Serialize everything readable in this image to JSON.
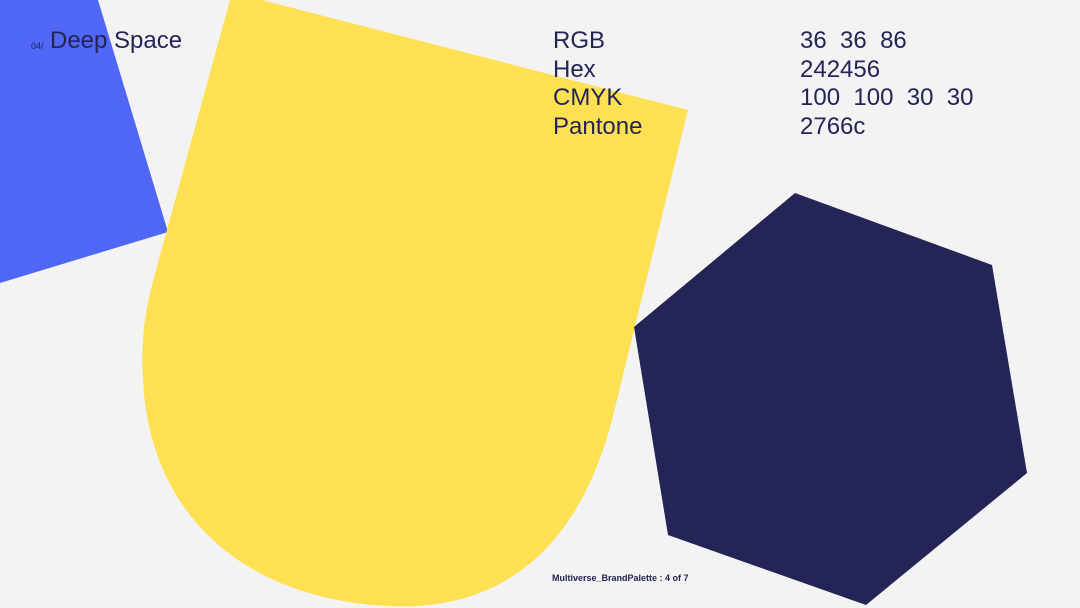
{
  "header": {
    "index": "04/",
    "title": "Deep Space"
  },
  "specs": [
    {
      "label": "RGB",
      "value": "36  36  86"
    },
    {
      "label": "Hex",
      "value": "242456"
    },
    {
      "label": "CMYK",
      "value": "100  100  30  30"
    },
    {
      "label": "Pantone",
      "value": "2766c"
    }
  ],
  "footer": "Multiverse_BrandPalette : 4 of 7"
}
